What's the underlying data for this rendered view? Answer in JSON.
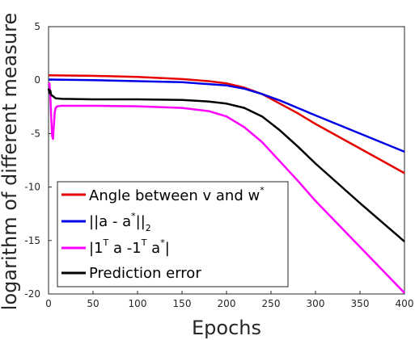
{
  "chart_data": {
    "type": "line",
    "xlabel": "Epochs",
    "ylabel": "logarithm of different measure",
    "xlim": [
      0,
      400
    ],
    "ylim": [
      -20,
      5
    ],
    "xticks": [
      0,
      50,
      100,
      150,
      200,
      250,
      300,
      350,
      400
    ],
    "yticks": [
      5,
      0,
      -5,
      -10,
      -15,
      -20
    ],
    "grid": false,
    "legend_position": "bottom-left",
    "series": [
      {
        "name": "Angle between v and w*",
        "color": "#e60000",
        "x": [
          0,
          50,
          100,
          150,
          180,
          200,
          220,
          240,
          260,
          280,
          300,
          350,
          400
        ],
        "y": [
          0.45,
          0.4,
          0.3,
          0.1,
          -0.1,
          -0.3,
          -0.7,
          -1.3,
          -2.2,
          -3.1,
          -4.1,
          -6.4,
          -8.7
        ]
      },
      {
        "name": "||a - a*||_2",
        "color": "#0000e6",
        "x": [
          0,
          50,
          100,
          150,
          200,
          220,
          240,
          260,
          280,
          300,
          350,
          400
        ],
        "y": [
          0.05,
          0.0,
          -0.1,
          -0.2,
          -0.5,
          -0.8,
          -1.3,
          -1.9,
          -2.6,
          -3.3,
          -5.0,
          -6.7
        ]
      },
      {
        "name": "|1^T a - 1^T a*|",
        "color": "#ff00ff",
        "x": [
          0,
          1,
          2,
          3,
          4,
          5,
          6,
          7,
          8,
          10,
          15,
          20,
          50,
          100,
          150,
          180,
          200,
          220,
          240,
          260,
          280,
          300,
          350,
          400
        ],
        "y": [
          -0.5,
          -0.3,
          -1.5,
          -3.5,
          -5.2,
          -5.5,
          -4.2,
          -3.0,
          -2.6,
          -2.45,
          -2.4,
          -2.4,
          -2.4,
          -2.45,
          -2.6,
          -2.9,
          -3.4,
          -4.4,
          -5.8,
          -7.6,
          -9.4,
          -11.3,
          -15.6,
          -19.9
        ]
      },
      {
        "name": "Prediction error",
        "color": "#000000",
        "x": [
          0,
          1,
          2,
          3,
          5,
          8,
          15,
          50,
          100,
          150,
          180,
          200,
          220,
          240,
          260,
          280,
          300,
          350,
          400
        ],
        "y": [
          -0.8,
          -1.2,
          -1.0,
          -1.4,
          -1.5,
          -1.7,
          -1.75,
          -1.8,
          -1.8,
          -1.85,
          -2.0,
          -2.2,
          -2.6,
          -3.4,
          -4.7,
          -6.2,
          -7.8,
          -11.5,
          -15.1
        ]
      }
    ]
  },
  "legend": {
    "item1": {
      "main": "Angle between v and w",
      "sup": "*"
    },
    "item2": {
      "a": "||a - a",
      "sup": "*",
      "b": "||",
      "sub": "2"
    },
    "item3": {
      "a": "|1",
      "sup1": "T",
      "b": " a -1",
      "sup2": "T",
      "c": " a",
      "sup3": "*",
      "d": "|"
    },
    "item4": {
      "main": "Prediction error"
    }
  }
}
